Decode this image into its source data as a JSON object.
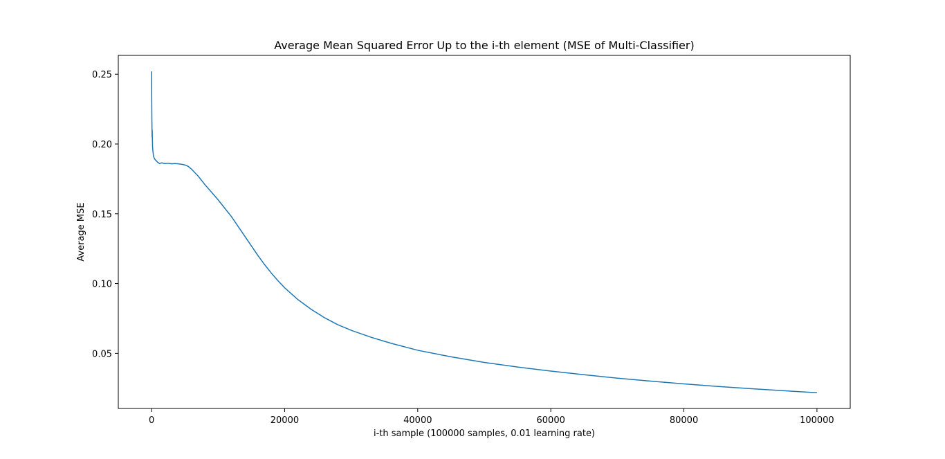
{
  "chart_data": {
    "type": "line",
    "title": "Average Mean Squared Error Up to the i-th element (MSE of Multi-Classifier)",
    "xlabel": "i-th sample (100000 samples, 0.01 learning rate)",
    "ylabel": "Average MSE",
    "xlim": [
      -5000,
      105000
    ],
    "ylim": [
      0.0105,
      0.2635
    ],
    "x_ticks": [
      0,
      20000,
      40000,
      60000,
      80000,
      100000
    ],
    "x_tick_labels": [
      "0",
      "20000",
      "40000",
      "60000",
      "80000",
      "100000"
    ],
    "y_ticks": [
      0.05,
      0.1,
      0.15,
      0.2,
      0.25
    ],
    "y_tick_labels": [
      "0.05",
      "0.10",
      "0.15",
      "0.20",
      "0.25"
    ],
    "grid": false,
    "legend": "none",
    "series": [
      {
        "color": "#1f77b4",
        "x": [
          0,
          20,
          40,
          60,
          80,
          100,
          120,
          150,
          200,
          300,
          400,
          500,
          700,
          900,
          1200,
          1500,
          2000,
          2500,
          3000,
          3500,
          4000,
          4500,
          5000,
          5500,
          6000,
          7000,
          8000,
          9000,
          10000,
          11000,
          12000,
          13000,
          14000,
          15000,
          16000,
          17000,
          18000,
          19000,
          20000,
          22000,
          24000,
          26000,
          28000,
          30000,
          33000,
          36000,
          40000,
          45000,
          50000,
          55000,
          60000,
          65000,
          70000,
          75000,
          80000,
          85000,
          90000,
          95000,
          100000
        ],
        "y": [
          0.252,
          0.236,
          0.221,
          0.212,
          0.205,
          0.21,
          0.204,
          0.198,
          0.195,
          0.191,
          0.19,
          0.189,
          0.188,
          0.187,
          0.186,
          0.1865,
          0.186,
          0.1862,
          0.1858,
          0.186,
          0.1858,
          0.1855,
          0.185,
          0.184,
          0.182,
          0.177,
          0.171,
          0.1655,
          0.16,
          0.154,
          0.148,
          0.141,
          0.134,
          0.127,
          0.12,
          0.1135,
          0.1075,
          0.102,
          0.097,
          0.0885,
          0.0815,
          0.0755,
          0.0705,
          0.0665,
          0.0615,
          0.0572,
          0.0522,
          0.0475,
          0.0435,
          0.0402,
          0.0373,
          0.0347,
          0.0322,
          0.0301,
          0.0281,
          0.0263,
          0.0247,
          0.0232,
          0.0218
        ]
      }
    ]
  }
}
